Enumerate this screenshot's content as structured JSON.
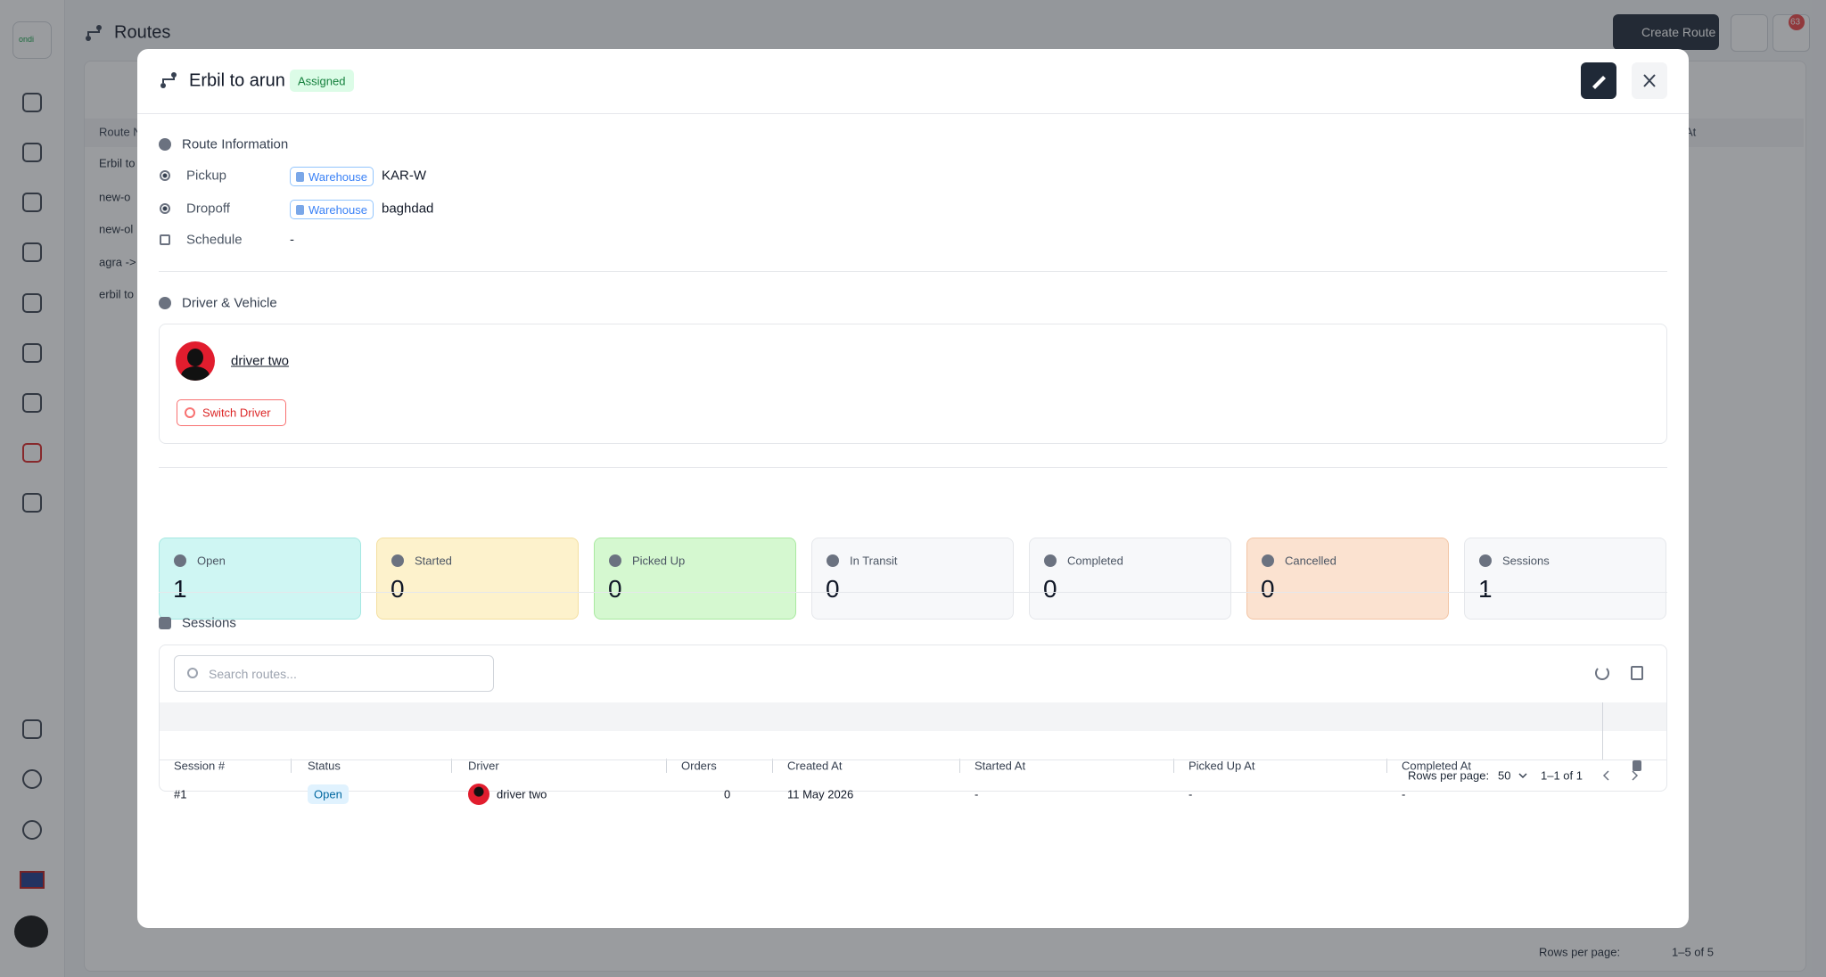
{
  "background": {
    "logo": "ondi",
    "title": "Routes",
    "create_button": "Create Route",
    "notification_count": "63",
    "table_header": "Route N",
    "rows": [
      "Erbil to",
      "new-o",
      "new-ol",
      "agra -> ,",
      "erbil to"
    ],
    "right_header": "At",
    "footer": {
      "rows_per_page": "Rows per page:",
      "range": "1–5 of 5"
    }
  },
  "modal": {
    "title": "Erbil to arun",
    "status": "Assigned",
    "route_information": {
      "heading": "Route Information",
      "pickup": {
        "label": "Pickup",
        "chip": "Warehouse",
        "value": "KAR-W"
      },
      "dropoff": {
        "label": "Dropoff",
        "chip": "Warehouse",
        "value": "baghdad"
      },
      "schedule": {
        "label": "Schedule",
        "value": "-"
      }
    },
    "driver_vehicle": {
      "heading": "Driver & Vehicle",
      "driver": "driver two",
      "switch_button": "Switch Driver"
    },
    "stats": [
      {
        "label": "Open",
        "value": 1
      },
      {
        "label": "Started",
        "value": 0
      },
      {
        "label": "Picked Up",
        "value": 0
      },
      {
        "label": "In Transit",
        "value": 0
      },
      {
        "label": "Completed",
        "value": 0
      },
      {
        "label": "Cancelled",
        "value": 0
      },
      {
        "label": "Sessions",
        "value": 1
      }
    ],
    "sessions": {
      "heading": "Sessions",
      "search_placeholder": "Search routes...",
      "columns": [
        "Session #",
        "Status",
        "Driver",
        "Orders",
        "Created At",
        "Started At",
        "Picked Up At",
        "Completed At"
      ],
      "rows": [
        [
          "#1",
          "Open",
          "driver two",
          0,
          "11 May 2026",
          "-",
          "-",
          "-"
        ]
      ],
      "footer": {
        "rows_per_page": "Rows per page:",
        "page_size": "50",
        "range": "1–1 of 1"
      }
    }
  }
}
